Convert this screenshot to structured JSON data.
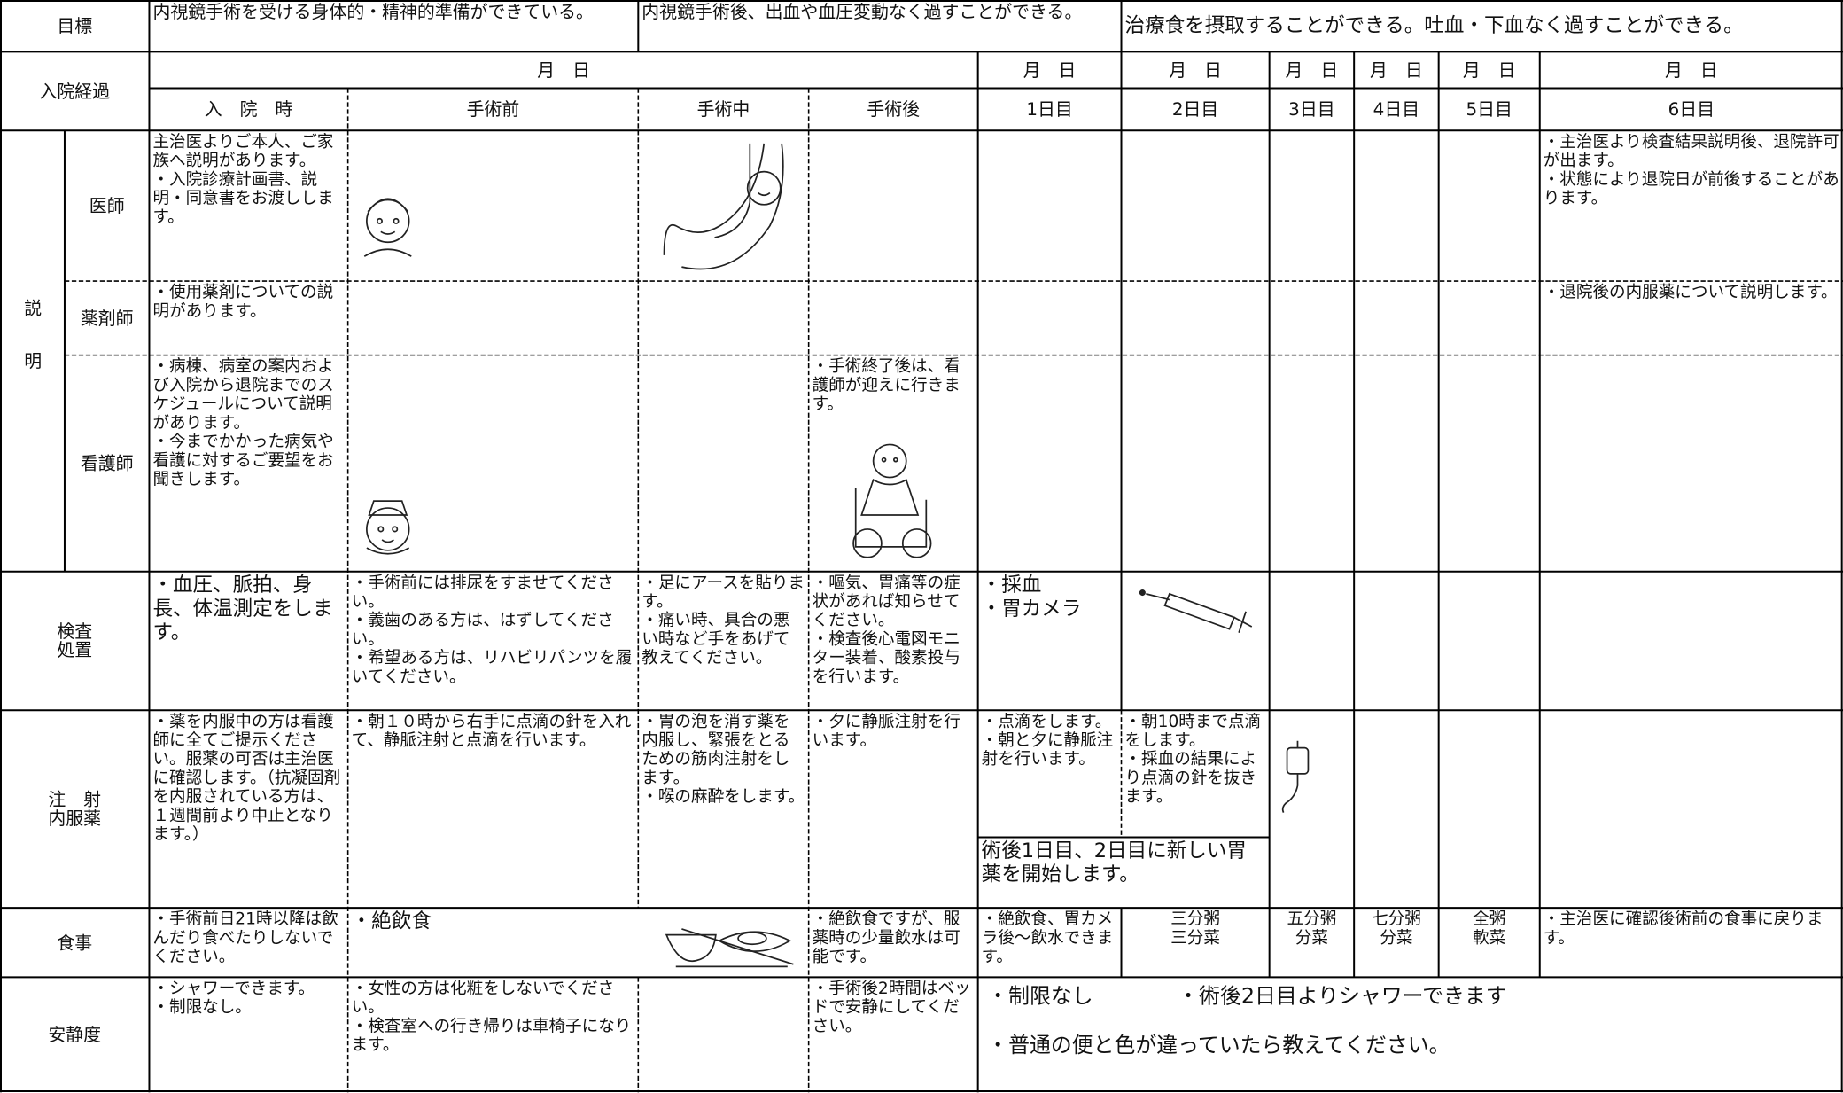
{
  "goals": {
    "label": "目標",
    "items": [
      "内視鏡手術を受ける身体的・精神的準備ができている。",
      "内視鏡手術後、出血や血圧変動なく過すことができる。",
      "治療食を摂取することができる。吐血・下血なく過すことができる。"
    ]
  },
  "schedule": {
    "label": "入院経過",
    "dates": [
      "月　日",
      "月　日",
      "月　日",
      "月　日",
      "月　日",
      "月　日",
      "月　日"
    ],
    "days": [
      "入　院　時",
      "手術前",
      "手術中",
      "手術後",
      "1日目",
      "2日目",
      "3日目",
      "4日目",
      "5日目",
      "6日目"
    ]
  },
  "explanation": {
    "label": "説明",
    "rows": [
      {
        "role": "医師",
        "cells": [
          [
            "主治医よりご本人、ご家族へ説明があります。",
            "・入院診療計画書、説明・同意書をお渡しします。"
          ],
          [
            "・主治医より検査結果説明後、退院許可が出ます。",
            "・状態により退院日が前後することがあります。"
          ]
        ]
      },
      {
        "role": "薬剤師",
        "cells": [
          [
            "・使用薬剤についての説明があります。"
          ],
          [
            "・退院後の内服薬について説明します。"
          ]
        ]
      },
      {
        "role": "看護師",
        "cells": [
          [
            "・病棟、病室の案内および入院から退院までのスケジュールについて説明があります。",
            "・今までかかった病気や看護に対するご要望をお聞きします。"
          ],
          [
            "・手術終了後は、看護師が迎えに行きます。"
          ]
        ]
      }
    ]
  },
  "care": [
    {
      "label": [
        "検査",
        "処置"
      ],
      "cells": [
        [
          "・血圧、脈拍、身長、体温測定をします。"
        ],
        [
          "・手術前には排尿をすませてください。",
          "・義歯のある方は、はずしてください。",
          "・希望ある方は、リハビリパンツを履いてください。"
        ],
        [
          "・足にアースを貼ります。",
          "・痛い時、具合の悪い時など手をあげて教えてください。"
        ],
        [
          "・嘔気、胃痛等の症状があれば知らせてください。",
          "・検査後心電図モニター装着、酸素投与を行います。"
        ],
        [
          "・採血",
          "・胃カメラ"
        ]
      ]
    },
    {
      "label": [
        "注　射",
        "内服薬"
      ],
      "cells": [
        [
          "・薬を内服中の方は看護師に全てご提示ください。服薬の可否は主治医に確認します。（抗凝固剤を内服されている方は、１週間前より中止となります。）"
        ],
        [
          "・朝１０時から右手に点滴の針を入れて、静脈注射と点滴を行います。"
        ],
        [
          "・胃の泡を消す薬を内服し、緊張をとるための筋肉注射をします。",
          "・喉の麻酔をします。"
        ],
        [
          "・夕に静脈注射を行います。"
        ],
        [
          "・点滴をします。",
          "・朝と夕に静脈注射を行います。"
        ],
        [
          "・朝10時まで点滴をします。",
          "・採血の結果により点滴の針を抜きます。"
        ],
        [
          "術後1日目、2日目に新しい胃薬を開始します。"
        ]
      ]
    },
    {
      "label": [
        "食事"
      ],
      "cells": [
        [
          "・手術前日21時以降は飲んだり食べたりしないでください。"
        ],
        [
          "・絶飲食"
        ],
        [
          "・絶飲食ですが、服薬時の少量飲水は可能です。"
        ],
        [
          "・絶飲食、胃カメラ後～飲水できます。"
        ],
        [
          "三分粥",
          "三分菜"
        ],
        [
          "五分粥",
          "分菜"
        ],
        [
          "七分粥",
          "分菜"
        ],
        [
          "全粥",
          "軟菜"
        ],
        [
          "・主治医に確認後術前の食事に戻ります。"
        ]
      ]
    },
    {
      "label": [
        "安静度"
      ],
      "cells": [
        [
          "・シャワーできます。",
          "・制限なし。"
        ],
        [
          "・女性の方は化粧をしないでください。",
          "・検査室への行き帰りは車椅子になります。"
        ],
        [
          "・手術後2時間はベッドで安静にしてください。"
        ],
        [
          "・制限なし",
          "・術後2日目よりシャワーできます",
          "・普通の便と色が違っていたら教えてください。"
        ]
      ]
    }
  ]
}
